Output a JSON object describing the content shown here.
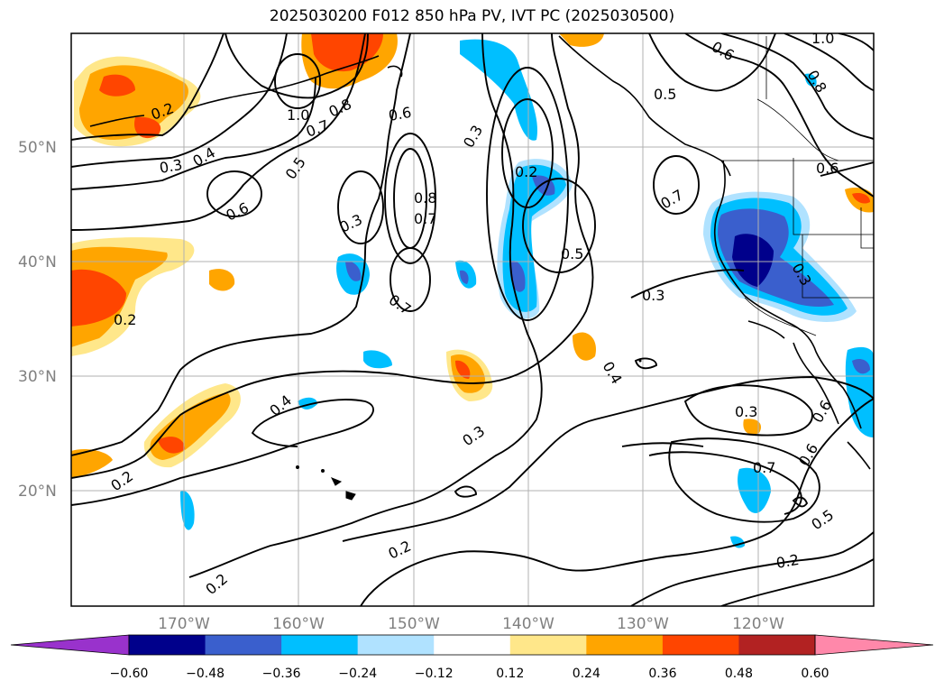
{
  "title": "2025030200 F012 850 hPa PV, IVT PC (2025030500)",
  "map": {
    "lat_labels": [
      "50°N",
      "40°N",
      "30°N",
      "20°N"
    ],
    "lon_labels": [
      "170°W",
      "160°W",
      "150°W",
      "140°W",
      "130°W",
      "120°W"
    ],
    "contour_labels": [
      "0.2",
      "1.0",
      "0.8",
      "0.6",
      "0.7",
      "0.3",
      "0.4",
      "0.5",
      "0.6",
      "0.3",
      "0.8",
      "0.7",
      "0.2",
      "0.5",
      "0.3",
      "0.7",
      "0.2",
      "0.3",
      "0.4",
      "0.3",
      "0.2",
      "0.7",
      "0.6",
      "0.5",
      "0.2",
      "0.2",
      "0.2",
      "0.6",
      "0.5",
      "0.4",
      "1.0",
      "0.8",
      "0.7",
      "0.6",
      "0.3",
      "0.3",
      "0.6"
    ]
  },
  "colorbar": {
    "tick_labels": [
      "−0.60",
      "−0.48",
      "−0.36",
      "−0.24",
      "−0.12",
      "0.12",
      "0.24",
      "0.36",
      "0.48",
      "0.60"
    ],
    "colors": [
      "#9932cc",
      "#00008b",
      "#3a5fcd",
      "#00bfff",
      "#b0e2ff",
      "#ffffff",
      "#ffe78a",
      "#ffa500",
      "#ff4500",
      "#b22222",
      "#ff88aa"
    ]
  }
}
